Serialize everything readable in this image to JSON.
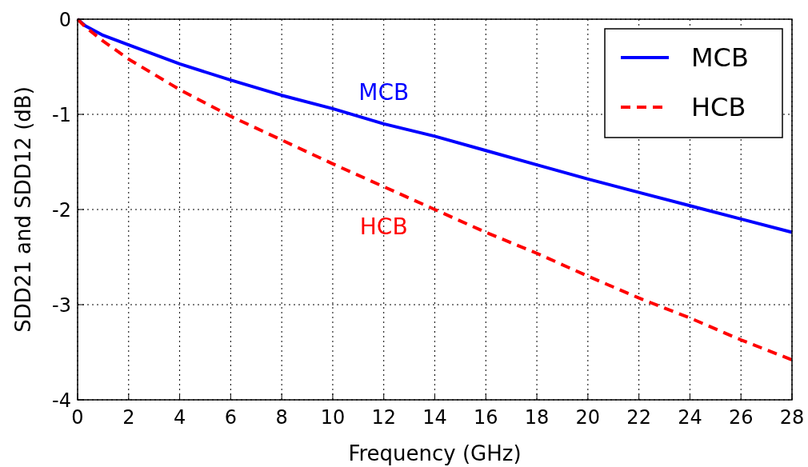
{
  "chart_data": {
    "type": "line",
    "xlabel": "Frequency (GHz)",
    "ylabel": "SDD21 and SDD12 (dB)",
    "x": [
      0,
      0.3,
      1,
      2,
      4,
      6,
      8,
      10,
      12,
      14,
      16,
      18,
      20,
      22,
      24,
      26,
      28
    ],
    "series": [
      {
        "name": "MCB",
        "color": "#0000ff",
        "line_style": "solid",
        "values": [
          0,
          -0.07,
          -0.17,
          -0.27,
          -0.47,
          -0.64,
          -0.8,
          -0.94,
          -1.1,
          -1.23,
          -1.38,
          -1.53,
          -1.68,
          -1.82,
          -1.96,
          -2.1,
          -2.24
        ]
      },
      {
        "name": "HCB",
        "color": "#ff0000",
        "line_style": "dashed",
        "values": [
          0,
          -0.08,
          -0.23,
          -0.42,
          -0.74,
          -1.02,
          -1.27,
          -1.52,
          -1.76,
          -2.0,
          -2.24,
          -2.46,
          -2.7,
          -2.93,
          -3.14,
          -3.37,
          -3.58
        ]
      }
    ],
    "annotations": [
      "MCB",
      "HCB"
    ],
    "xlim": [
      0,
      28
    ],
    "xticks": [
      0,
      2,
      4,
      6,
      8,
      10,
      12,
      14,
      16,
      18,
      20,
      22,
      24,
      26,
      28
    ],
    "ylim": [
      -4,
      0
    ],
    "yticks": [
      0,
      -1,
      -2,
      -3,
      -4
    ],
    "grid": true,
    "legend": "top right"
  }
}
